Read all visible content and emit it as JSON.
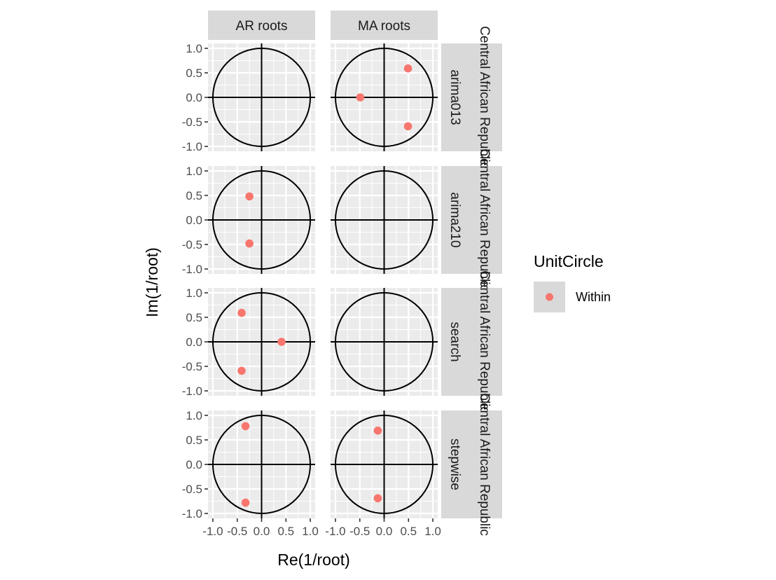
{
  "chart_data": {
    "type": "scatter",
    "facet_cols": [
      "AR roots",
      "MA roots"
    ],
    "facet_rows": [
      "arima013",
      "arima210",
      "search",
      "stepwise"
    ],
    "facet_outer_label": "Central African Republic",
    "xlabel": "Re(1/root)",
    "ylabel": "Im(1/root)",
    "xlim": [
      -1.1,
      1.1
    ],
    "ylim": [
      -1.1,
      1.1
    ],
    "x_ticks": [
      -1.0,
      -0.5,
      0.0,
      0.5,
      1.0
    ],
    "x_tick_labels": [
      "-1.0",
      "-0.5",
      "0.0",
      "0.5",
      "1.0"
    ],
    "y_ticks": [
      -1.0,
      -0.5,
      0.0,
      0.5,
      1.0
    ],
    "y_tick_labels": [
      "-1.0",
      "-0.5",
      "0.0",
      "0.5",
      "1.0"
    ],
    "unit_circle": true,
    "grid": true,
    "legend": {
      "title": "UnitCircle",
      "entries": [
        {
          "label": "Within",
          "color": "#F8766D"
        }
      ],
      "placement": "right"
    },
    "colors": {
      "panel_bg": "#EBEBEB",
      "grid": "#FFFFFF",
      "strip_bg": "#D9D9D9",
      "point": "#F8766D"
    },
    "panels": [
      {
        "row": "arima013",
        "col": "AR roots",
        "points": []
      },
      {
        "row": "arima013",
        "col": "MA roots",
        "points": [
          {
            "x": 0.49,
            "y": 0.59
          },
          {
            "x": -0.49,
            "y": 0.0
          },
          {
            "x": 0.49,
            "y": -0.59
          }
        ]
      },
      {
        "row": "arima210",
        "col": "AR roots",
        "points": [
          {
            "x": -0.25,
            "y": 0.48
          },
          {
            "x": -0.25,
            "y": -0.48
          }
        ]
      },
      {
        "row": "arima210",
        "col": "MA roots",
        "points": []
      },
      {
        "row": "search",
        "col": "AR roots",
        "points": [
          {
            "x": -0.41,
            "y": 0.59
          },
          {
            "x": 0.41,
            "y": 0.0
          },
          {
            "x": -0.41,
            "y": -0.59
          }
        ]
      },
      {
        "row": "search",
        "col": "MA roots",
        "points": []
      },
      {
        "row": "stepwise",
        "col": "AR roots",
        "points": [
          {
            "x": -0.33,
            "y": 0.78
          },
          {
            "x": -0.33,
            "y": -0.78
          }
        ]
      },
      {
        "row": "stepwise",
        "col": "MA roots",
        "points": [
          {
            "x": -0.13,
            "y": 0.69
          },
          {
            "x": -0.13,
            "y": -0.69
          }
        ]
      }
    ]
  }
}
